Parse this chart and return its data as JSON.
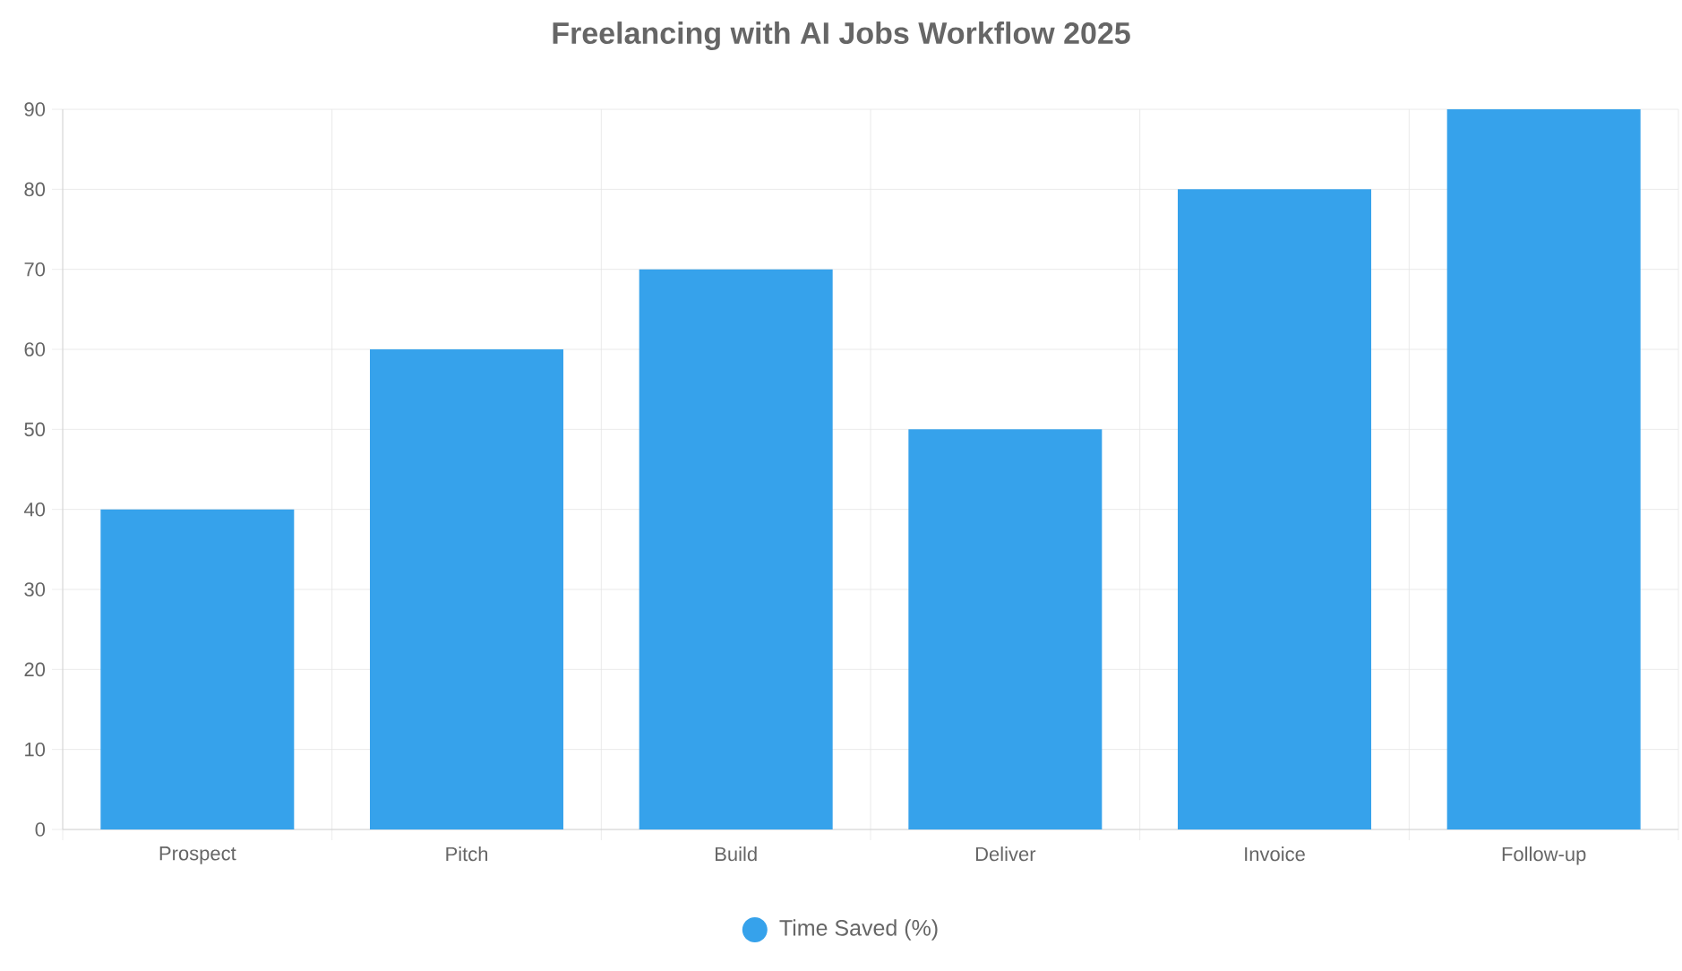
{
  "chart_data": {
    "type": "bar",
    "title": "Freelancing with AI Jobs Workflow 2025",
    "categories": [
      "Prospect",
      "Pitch",
      "Build",
      "Deliver",
      "Invoice",
      "Follow-up"
    ],
    "series": [
      {
        "name": "Time Saved (%)",
        "color": "#36a2eb",
        "values": [
          40,
          60,
          70,
          50,
          80,
          90
        ]
      }
    ],
    "ylim": [
      0,
      90
    ],
    "yticks": [
      0,
      10,
      20,
      30,
      40,
      50,
      60,
      70,
      80,
      90
    ],
    "grid": true,
    "legend": "bottom"
  }
}
